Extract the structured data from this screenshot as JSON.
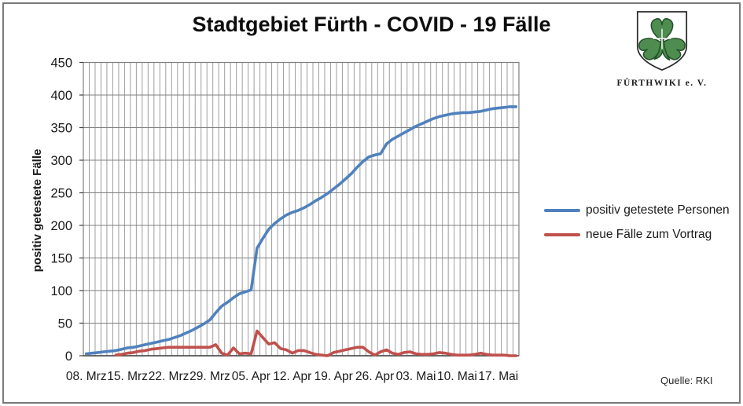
{
  "page": {
    "title": "Stadtgebiet Fürth - COVID - 19 Fälle",
    "source": "Quelle: RKI"
  },
  "logo": {
    "caption": "FÜRTHWIKI e. V.",
    "shield_color": "#ffffff",
    "clover_color": "#4e8c50"
  },
  "colors": {
    "positive_series": "#4F81BD",
    "new_cases_series": "#C0504D",
    "grid_vertical": "#9E9E9E",
    "grid_horizontal": "#7F7F7F",
    "plot_border": "#7F7F7F",
    "axis_line": "#404040",
    "text": "#1a1a1a"
  },
  "chart_data": {
    "type": "line",
    "title": "Stadtgebiet Fürth - COVID - 19 Fälle",
    "xlabel": "",
    "ylabel": "positiv getestete Fälle",
    "ylim": [
      0,
      450
    ],
    "y_ticks": [
      0,
      50,
      100,
      150,
      200,
      250,
      300,
      350,
      400,
      450
    ],
    "x_tick_labels": [
      "08. Mrz",
      "15. Mrz",
      "22. Mrz",
      "29. Mrz",
      "05. Apr",
      "12. Apr",
      "19. Apr",
      "26. Apr",
      "03. Mai",
      "10. Mai",
      "17. Mai"
    ],
    "x_tick_interval_days": 7,
    "grid": "both, daily vertical lines, horizontal every 50",
    "legend_position": "right",
    "dates": [
      "08. Mrz",
      "09. Mrz",
      "10. Mrz",
      "11. Mrz",
      "12. Mrz",
      "13. Mrz",
      "14. Mrz",
      "15. Mrz",
      "16. Mrz",
      "17. Mrz",
      "18. Mrz",
      "19. Mrz",
      "20. Mrz",
      "21. Mrz",
      "22. Mrz",
      "23. Mrz",
      "24. Mrz",
      "25. Mrz",
      "26. Mrz",
      "27. Mrz",
      "28. Mrz",
      "29. Mrz",
      "30. Mrz",
      "31. Mrz",
      "01. Apr",
      "02. Apr",
      "03. Apr",
      "04. Apr",
      "05. Apr",
      "06. Apr",
      "07. Apr",
      "08. Apr",
      "09. Apr",
      "10. Apr",
      "11. Apr",
      "12. Apr",
      "13. Apr",
      "14. Apr",
      "15. Apr",
      "16. Apr",
      "17. Apr",
      "18. Apr",
      "19. Apr",
      "20. Apr",
      "21. Apr",
      "22. Apr",
      "23. Apr",
      "24. Apr",
      "25. Apr",
      "26. Apr",
      "27. Apr",
      "28. Apr",
      "29. Apr",
      "30. Apr",
      "01. Mai",
      "02. Mai",
      "03. Mai",
      "04. Mai",
      "05. Mai",
      "06. Mai",
      "07. Mai",
      "08. Mai",
      "09. Mai",
      "10. Mai",
      "11. Mai",
      "12. Mai",
      "13. Mai",
      "14. Mai",
      "15. Mai",
      "16. Mai",
      "17. Mai",
      "18. Mai",
      "19. Mai",
      "20. Mai"
    ],
    "series": [
      {
        "name": "positiv getestete Personen",
        "color": "#4F81BD",
        "values": [
          3,
          4,
          5,
          6,
          7,
          8,
          10,
          12,
          13,
          15,
          17,
          19,
          21,
          23,
          25,
          28,
          31,
          35,
          39,
          44,
          49,
          55,
          66,
          76,
          82,
          89,
          95,
          98,
          101,
          165,
          180,
          194,
          203,
          210,
          216,
          220,
          223,
          227,
          232,
          238,
          243,
          249,
          256,
          263,
          271,
          279,
          289,
          298,
          305,
          308,
          310,
          325,
          332,
          337,
          342,
          347,
          352,
          356,
          360,
          364,
          367,
          369,
          371,
          372,
          373,
          373,
          374,
          375,
          377,
          379,
          380,
          381,
          382,
          382
        ]
      },
      {
        "name": "neue Fälle zum Vortrag",
        "color": "#C0504D",
        "values": [
          null,
          null,
          null,
          null,
          null,
          1,
          2,
          4,
          5,
          7,
          8,
          10,
          11,
          12,
          13,
          13,
          13,
          13,
          13,
          13,
          13,
          13,
          17,
          4,
          1,
          12,
          3,
          4,
          3,
          38,
          28,
          18,
          20,
          11,
          9,
          4,
          8,
          8,
          5,
          2,
          1,
          0,
          5,
          7,
          9,
          11,
          13,
          13,
          6,
          1,
          6,
          9,
          4,
          2,
          5,
          6,
          3,
          2,
          2,
          3,
          5,
          4,
          2,
          1,
          1,
          1,
          2,
          4,
          2,
          1,
          1,
          1,
          0,
          0
        ]
      }
    ]
  }
}
